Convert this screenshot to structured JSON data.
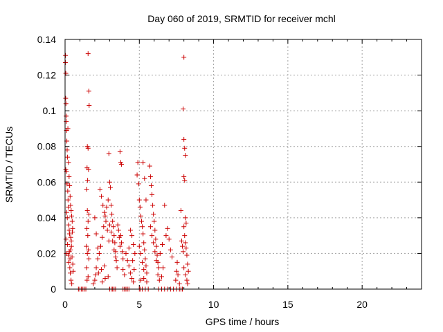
{
  "chart_data": {
    "type": "scatter",
    "title": "Day 060 of 2019, SRMTID for receiver mchl",
    "xlabel": "GPS time / hours",
    "ylabel": "SRMTID / TECUs",
    "xlim": [
      0,
      24
    ],
    "ylim": [
      0,
      0.14
    ],
    "x_ticks": [
      0,
      5,
      10,
      15,
      20
    ],
    "x_tick_labels": [
      "0",
      "5",
      "10",
      "15",
      "20"
    ],
    "y_ticks": [
      0,
      0.02,
      0.04,
      0.06,
      0.08,
      0.1,
      0.12,
      0.14
    ],
    "y_tick_labels": [
      "0",
      "0.02",
      "0.04",
      "0.06",
      "0.08",
      "0.1",
      "0.12",
      "0.14"
    ],
    "grid": true,
    "marker": "+",
    "marker_color": "#cc0000",
    "series": [
      {
        "points": [
          [
            0.02,
            0.127
          ],
          [
            0.03,
            0.131
          ],
          [
            0.05,
            0.121
          ],
          [
            0.04,
            0.107
          ],
          [
            0.06,
            0.104
          ],
          [
            0.07,
            0.097
          ],
          [
            0.08,
            0.094
          ],
          [
            0.1,
            0.089
          ],
          [
            0.12,
            0.083
          ],
          [
            0.14,
            0.078
          ],
          [
            0.16,
            0.074
          ],
          [
            0.05,
            0.067
          ],
          [
            0.09,
            0.066
          ],
          [
            0.13,
            0.059
          ],
          [
            0.18,
            0.055
          ],
          [
            0.2,
            0.05
          ],
          [
            0.22,
            0.046
          ],
          [
            0.11,
            0.043
          ],
          [
            0.15,
            0.04
          ],
          [
            0.24,
            0.036
          ],
          [
            0.28,
            0.033
          ],
          [
            0.3,
            0.031
          ],
          [
            0.06,
            0.028
          ],
          [
            0.17,
            0.025
          ],
          [
            0.08,
            0.02
          ],
          [
            0.21,
            0.019
          ],
          [
            0.25,
            0.015
          ],
          [
            0.32,
            0.012
          ],
          [
            0.35,
            0.009
          ],
          [
            0.4,
            0.005
          ],
          [
            0.45,
            0.003
          ],
          [
            0.19,
            0.09
          ],
          [
            0.23,
            0.071
          ],
          [
            0.27,
            0.063
          ],
          [
            0.31,
            0.058
          ],
          [
            0.34,
            0.052
          ],
          [
            0.37,
            0.047
          ],
          [
            0.41,
            0.044
          ],
          [
            0.44,
            0.041
          ],
          [
            0.48,
            0.038
          ],
          [
            0.51,
            0.034
          ],
          [
            0.38,
            0.029
          ],
          [
            0.43,
            0.024
          ],
          [
            0.47,
            0.018
          ],
          [
            0.52,
            0.014
          ],
          [
            0.55,
            0.01
          ],
          [
            0.29,
            0.021
          ],
          [
            0.33,
            0.017
          ],
          [
            0.36,
            0.022
          ],
          [
            0.42,
            0.027
          ],
          [
            0.49,
            0.032
          ],
          [
            1.55,
            0.132
          ],
          [
            1.6,
            0.111
          ],
          [
            1.62,
            0.103
          ],
          [
            1.5,
            0.08
          ],
          [
            1.55,
            0.079
          ],
          [
            1.48,
            0.068
          ],
          [
            1.58,
            0.067
          ],
          [
            1.52,
            0.061
          ],
          [
            1.45,
            0.056
          ],
          [
            1.5,
            0.044
          ],
          [
            1.6,
            0.042
          ],
          [
            1.55,
            0.038
          ],
          [
            1.47,
            0.034
          ],
          [
            1.53,
            0.03
          ],
          [
            1.43,
            0.024
          ],
          [
            1.57,
            0.022
          ],
          [
            1.5,
            0.02
          ],
          [
            1.6,
            0.017
          ],
          [
            1.45,
            0.012
          ],
          [
            1.55,
            0.007
          ],
          [
            1.48,
            0.005
          ],
          [
            1.2,
            0.0
          ],
          [
            1.3,
            0.0
          ],
          [
            1.4,
            0.0
          ],
          [
            1.1,
            0.0
          ],
          [
            1.0,
            0.0
          ],
          [
            0.9,
            0.0
          ],
          [
            1.9,
            0.003
          ],
          [
            2.0,
            0.005
          ],
          [
            2.1,
            0.012
          ],
          [
            2.2,
            0.017
          ],
          [
            2.3,
            0.02
          ],
          [
            2.4,
            0.024
          ],
          [
            2.5,
            0.029
          ],
          [
            2.6,
            0.035
          ],
          [
            2.7,
            0.041
          ],
          [
            2.8,
            0.046
          ],
          [
            2.9,
            0.05
          ],
          [
            2.0,
            0.04
          ],
          [
            2.1,
            0.031
          ],
          [
            2.2,
            0.023
          ],
          [
            2.35,
            0.056
          ],
          [
            2.45,
            0.052
          ],
          [
            2.55,
            0.047
          ],
          [
            2.65,
            0.043
          ],
          [
            2.75,
            0.038
          ],
          [
            2.85,
            0.033
          ],
          [
            2.95,
            0.027
          ],
          [
            2.05,
            0.008
          ],
          [
            2.25,
            0.009
          ],
          [
            2.45,
            0.011
          ],
          [
            2.65,
            0.013
          ],
          [
            2.5,
            0.004
          ],
          [
            2.7,
            0.006
          ],
          [
            2.9,
            0.007
          ],
          [
            2.95,
            0.076
          ],
          [
            3.0,
            0.06
          ],
          [
            3.05,
            0.057
          ],
          [
            3.1,
            0.047
          ],
          [
            3.15,
            0.042
          ],
          [
            3.2,
            0.038
          ],
          [
            3.25,
            0.035
          ],
          [
            3.3,
            0.03
          ],
          [
            3.35,
            0.026
          ],
          [
            3.4,
            0.021
          ],
          [
            3.45,
            0.016
          ],
          [
            3.5,
            0.012
          ],
          [
            3.0,
            0.036
          ],
          [
            3.1,
            0.032
          ],
          [
            3.2,
            0.027
          ],
          [
            3.3,
            0.022
          ],
          [
            3.4,
            0.018
          ],
          [
            3.55,
            0.036
          ],
          [
            3.6,
            0.033
          ],
          [
            3.65,
            0.029
          ],
          [
            3.7,
            0.024
          ],
          [
            3.75,
            0.03
          ],
          [
            3.8,
            0.026
          ],
          [
            3.85,
            0.021
          ],
          [
            3.9,
            0.017
          ],
          [
            3.7,
            0.077
          ],
          [
            3.75,
            0.071
          ],
          [
            3.8,
            0.07
          ],
          [
            3.9,
            0.011
          ],
          [
            4.0,
            0.008
          ],
          [
            3.0,
            0.0
          ],
          [
            3.1,
            0.0
          ],
          [
            3.2,
            0.0
          ],
          [
            3.3,
            0.0
          ],
          [
            3.4,
            0.0
          ],
          [
            3.9,
            0.0
          ],
          [
            4.0,
            0.0
          ],
          [
            4.1,
            0.0
          ],
          [
            4.2,
            0.0
          ],
          [
            4.3,
            0.0
          ],
          [
            4.1,
            0.02
          ],
          [
            4.2,
            0.016
          ],
          [
            4.3,
            0.013
          ],
          [
            4.4,
            0.033
          ],
          [
            4.5,
            0.03
          ],
          [
            4.6,
            0.025
          ],
          [
            4.7,
            0.02
          ],
          [
            4.4,
            0.009
          ],
          [
            4.5,
            0.006
          ],
          [
            4.6,
            0.004
          ],
          [
            4.3,
            0.023
          ],
          [
            4.55,
            0.016
          ],
          [
            4.65,
            0.011
          ],
          [
            4.85,
            0.064
          ],
          [
            4.9,
            0.071
          ],
          [
            4.95,
            0.059
          ],
          [
            5.0,
            0.05
          ],
          [
            5.05,
            0.046
          ],
          [
            5.1,
            0.041
          ],
          [
            5.15,
            0.038
          ],
          [
            5.2,
            0.035
          ],
          [
            5.25,
            0.031
          ],
          [
            5.3,
            0.026
          ],
          [
            5.35,
            0.022
          ],
          [
            5.4,
            0.017
          ],
          [
            5.45,
            0.013
          ],
          [
            5.5,
            0.009
          ],
          [
            5.0,
            0.024
          ],
          [
            5.1,
            0.02
          ],
          [
            5.2,
            0.015
          ],
          [
            5.3,
            0.011
          ],
          [
            5.1,
            0.005
          ],
          [
            5.3,
            0.006
          ],
          [
            5.5,
            0.004
          ],
          [
            5.25,
            0.071
          ],
          [
            5.35,
            0.062
          ],
          [
            5.45,
            0.05
          ],
          [
            5.0,
            0.0
          ],
          [
            5.1,
            0.0
          ],
          [
            5.2,
            0.0
          ],
          [
            5.4,
            0.0
          ],
          [
            5.6,
            0.0
          ],
          [
            5.7,
            0.069
          ],
          [
            5.75,
            0.063
          ],
          [
            5.8,
            0.058
          ],
          [
            5.85,
            0.053
          ],
          [
            5.9,
            0.047
          ],
          [
            5.95,
            0.042
          ],
          [
            6.0,
            0.038
          ],
          [
            6.05,
            0.033
          ],
          [
            6.1,
            0.028
          ],
          [
            6.15,
            0.024
          ],
          [
            6.2,
            0.019
          ],
          [
            6.25,
            0.015
          ],
          [
            6.3,
            0.012
          ],
          [
            5.75,
            0.035
          ],
          [
            5.85,
            0.03
          ],
          [
            5.95,
            0.026
          ],
          [
            6.05,
            0.021
          ],
          [
            6.15,
            0.016
          ],
          [
            6.25,
            0.008
          ],
          [
            6.35,
            0.005
          ],
          [
            6.5,
            0.007
          ],
          [
            6.6,
            0.012
          ],
          [
            6.4,
            0.02
          ],
          [
            6.55,
            0.025
          ],
          [
            6.7,
            0.047
          ],
          [
            6.8,
            0.03
          ],
          [
            6.9,
            0.034
          ],
          [
            7.0,
            0.028
          ],
          [
            7.1,
            0.022
          ],
          [
            7.2,
            0.018
          ],
          [
            6.3,
            0.0
          ],
          [
            6.5,
            0.0
          ],
          [
            6.7,
            0.0
          ],
          [
            6.9,
            0.0
          ],
          [
            7.1,
            0.0
          ],
          [
            7.3,
            0.0
          ],
          [
            7.5,
            0.0
          ],
          [
            7.45,
            0.005
          ],
          [
            7.5,
            0.01
          ],
          [
            7.55,
            0.015
          ],
          [
            7.6,
            0.008
          ],
          [
            7.7,
            0.003
          ],
          [
            7.8,
            0.044
          ],
          [
            7.85,
            0.027
          ],
          [
            7.9,
            0.024
          ],
          [
            7.95,
            0.021
          ],
          [
            8.0,
            0.13
          ],
          [
            7.95,
            0.101
          ],
          [
            8.0,
            0.084
          ],
          [
            8.05,
            0.079
          ],
          [
            8.1,
            0.075
          ],
          [
            8.0,
            0.063
          ],
          [
            8.05,
            0.061
          ],
          [
            8.1,
            0.04
          ],
          [
            8.15,
            0.037
          ],
          [
            8.0,
            0.035
          ],
          [
            8.05,
            0.03
          ],
          [
            8.1,
            0.026
          ],
          [
            8.15,
            0.023
          ],
          [
            8.2,
            0.019
          ],
          [
            8.25,
            0.014
          ],
          [
            8.3,
            0.01
          ],
          [
            8.0,
            0.012
          ],
          [
            8.1,
            0.008
          ],
          [
            8.2,
            0.005
          ],
          [
            8.25,
            0.003
          ],
          [
            7.7,
            0.0
          ],
          [
            7.8,
            0.0
          ],
          [
            7.9,
            0.0
          ]
        ]
      }
    ]
  }
}
